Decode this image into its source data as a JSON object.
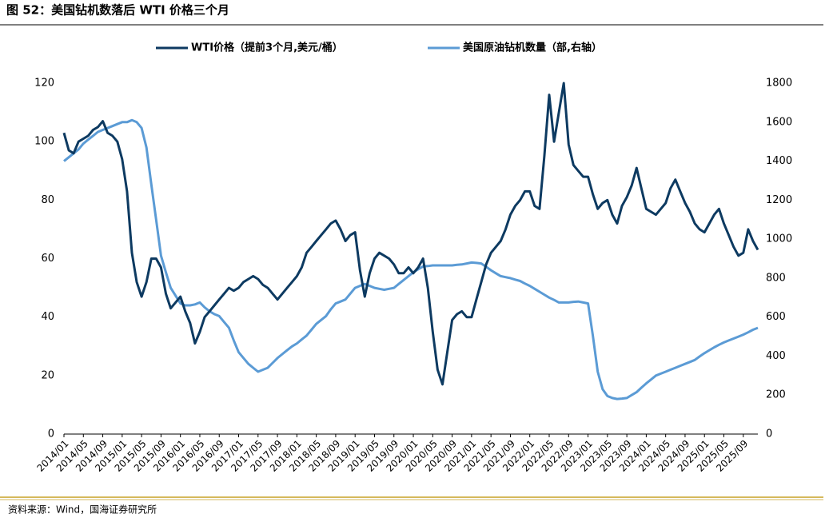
{
  "chart_data": {
    "type": "line",
    "title": "图 52：美国钻机数落后 WTI 价格三个月",
    "source": "资料来源：Wind，国海证券研究所",
    "categories": [
      "2014/01",
      null,
      null,
      null,
      "2014/05",
      null,
      null,
      null,
      "2014/09",
      null,
      null,
      null,
      "2015/01",
      null,
      null,
      null,
      "2015/05",
      null,
      null,
      null,
      "2015/09",
      null,
      null,
      null,
      "2016/01",
      null,
      null,
      null,
      "2016/05",
      null,
      null,
      null,
      "2016/09",
      null,
      null,
      null,
      "2017/01",
      null,
      null,
      null,
      "2017/05",
      null,
      null,
      null,
      "2017/09",
      null,
      null,
      null,
      "2018/01",
      null,
      null,
      null,
      "2018/05",
      null,
      null,
      null,
      "2018/09",
      null,
      null,
      null,
      "2019/01",
      null,
      null,
      null,
      "2019/05",
      null,
      null,
      null,
      "2019/09",
      null,
      null,
      null,
      "2020/01",
      null,
      null,
      null,
      "2020/05",
      null,
      null,
      null,
      "2020/09",
      null,
      null,
      null,
      "2021/01",
      null,
      null,
      null,
      "2021/05",
      null,
      null,
      null,
      "2021/09",
      null,
      null,
      null,
      "2022/01",
      null,
      null,
      null,
      "2022/05",
      null,
      null,
      null,
      "2022/09",
      null,
      null,
      null,
      "2023/01",
      null,
      null,
      null,
      "2023/05",
      null,
      null,
      null,
      "2023/09",
      null,
      null,
      null,
      "2024/01",
      null,
      null,
      null,
      "2024/05",
      null,
      null,
      null,
      "2024/09",
      null,
      null,
      null,
      "2025/01",
      null,
      null,
      null,
      "2025/05",
      null,
      null,
      null,
      "2025/09",
      null,
      null,
      null
    ],
    "series": [
      {
        "name": "WTI价格（提前3个月,美元/桶）",
        "color": "#0d3a61",
        "values": [
          103,
          97,
          96,
          100,
          101,
          102,
          104,
          105,
          107,
          103,
          102,
          100,
          94,
          83,
          62,
          52,
          47,
          52,
          60,
          60,
          57,
          48,
          43,
          45,
          47,
          42,
          38,
          31,
          35,
          40,
          42,
          44,
          46,
          48,
          50,
          49,
          50,
          52,
          53,
          54,
          53,
          51,
          50,
          48,
          46,
          48,
          50,
          52,
          54,
          57,
          62,
          64,
          66,
          68,
          70,
          72,
          73,
          70,
          66,
          68,
          69,
          56,
          47,
          55,
          60,
          62,
          61,
          60,
          58,
          55,
          55,
          57,
          55,
          57,
          60,
          50,
          35,
          22,
          17,
          28,
          39,
          41,
          42,
          40,
          40,
          46,
          52,
          58,
          62,
          64,
          66,
          70,
          75,
          78,
          80,
          83,
          83,
          78,
          77,
          95,
          116,
          100,
          110,
          120,
          99,
          92,
          90,
          88,
          88,
          82,
          77,
          79,
          80,
          75,
          72,
          78,
          81,
          85,
          91,
          84,
          77,
          76,
          75,
          77,
          79,
          84,
          87,
          83,
          79,
          76,
          72,
          70,
          69,
          72,
          75,
          77,
          72,
          68,
          64,
          61,
          62,
          70,
          66,
          63
        ]
      },
      {
        "name": "美国原油钻机数量（部,右轴）",
        "color": "#5b9bd5",
        "axis": "y2",
        "values": [
          1400,
          1420,
          1440,
          1460,
          1490,
          1510,
          1530,
          1550,
          1560,
          1570,
          1580,
          1590,
          1600,
          1600,
          1610,
          1600,
          1570,
          1470,
          1280,
          1100,
          915,
          830,
          750,
          710,
          670,
          660,
          660,
          665,
          675,
          650,
          630,
          615,
          605,
          575,
          545,
          480,
          420,
          390,
          360,
          340,
          320,
          330,
          340,
          365,
          390,
          410,
          430,
          450,
          465,
          485,
          505,
          535,
          565,
          585,
          605,
          640,
          670,
          680,
          690,
          720,
          750,
          760,
          770,
          760,
          750,
          745,
          740,
          745,
          750,
          770,
          790,
          810,
          830,
          845,
          860,
          862,
          865,
          865,
          865,
          865,
          865,
          868,
          870,
          875,
          880,
          878,
          875,
          858,
          840,
          825,
          810,
          805,
          800,
          792,
          785,
          772,
          760,
          745,
          730,
          715,
          700,
          688,
          675,
          675,
          675,
          678,
          680,
          675,
          670,
          505,
          320,
          230,
          195,
          185,
          180,
          182,
          185,
          200,
          215,
          238,
          260,
          280,
          300,
          310,
          320,
          330,
          340,
          350,
          360,
          370,
          380,
          398,
          415,
          430,
          445,
          458,
          470,
          480,
          490,
          500,
          510,
          522,
          535,
          545
        ]
      }
    ],
    "ylim": [
      0,
      120
    ],
    "yticks": [
      0,
      20,
      40,
      60,
      80,
      100,
      120
    ],
    "y2lim": [
      0,
      1800
    ],
    "y2ticks": [
      0,
      200,
      400,
      600,
      800,
      1000,
      1200,
      1400,
      1600,
      1800
    ],
    "grid": false
  }
}
